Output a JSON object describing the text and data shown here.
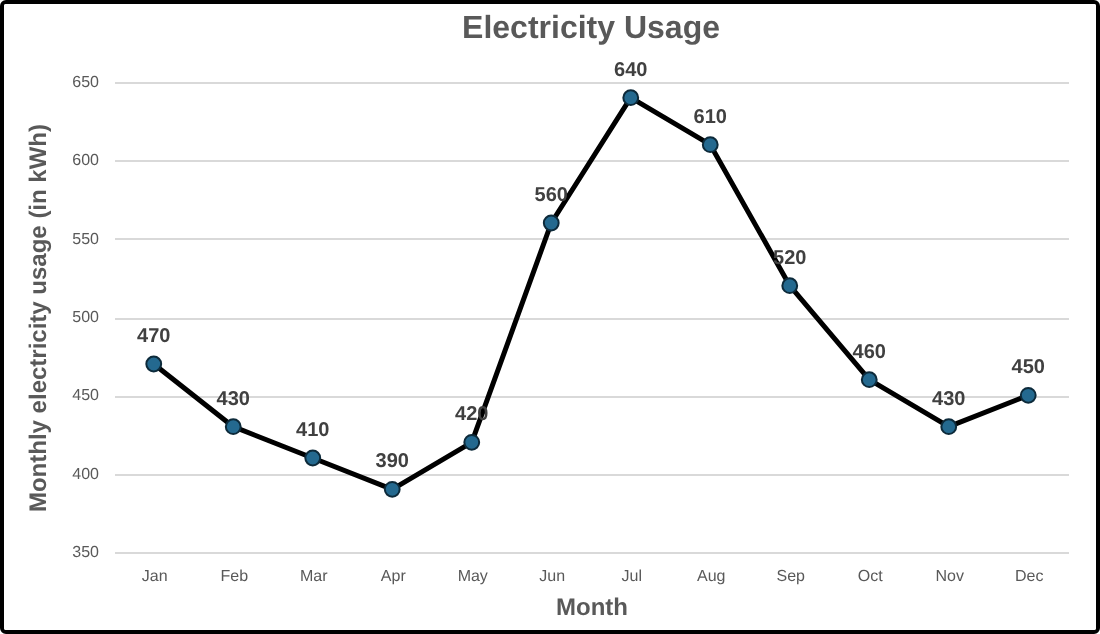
{
  "chart_data": {
    "type": "line",
    "title": "Electricity Usage",
    "xlabel": "Month",
    "ylabel": "Monthly electricity usage (in kWh)",
    "categories": [
      "Jan",
      "Feb",
      "Mar",
      "Apr",
      "May",
      "Jun",
      "Jul",
      "Aug",
      "Sep",
      "Oct",
      "Nov",
      "Dec"
    ],
    "series": [
      {
        "color": "#000000",
        "values": [
          470,
          430,
          410,
          390,
          420,
          560,
          640,
          610,
          520,
          460,
          430,
          450
        ]
      }
    ],
    "ylim": [
      350,
      650
    ],
    "yticks": [
      350,
      400,
      450,
      500,
      550,
      600,
      650
    ],
    "grid": "y",
    "marker": "circle",
    "line_style": "solid",
    "data_labels": true
  }
}
